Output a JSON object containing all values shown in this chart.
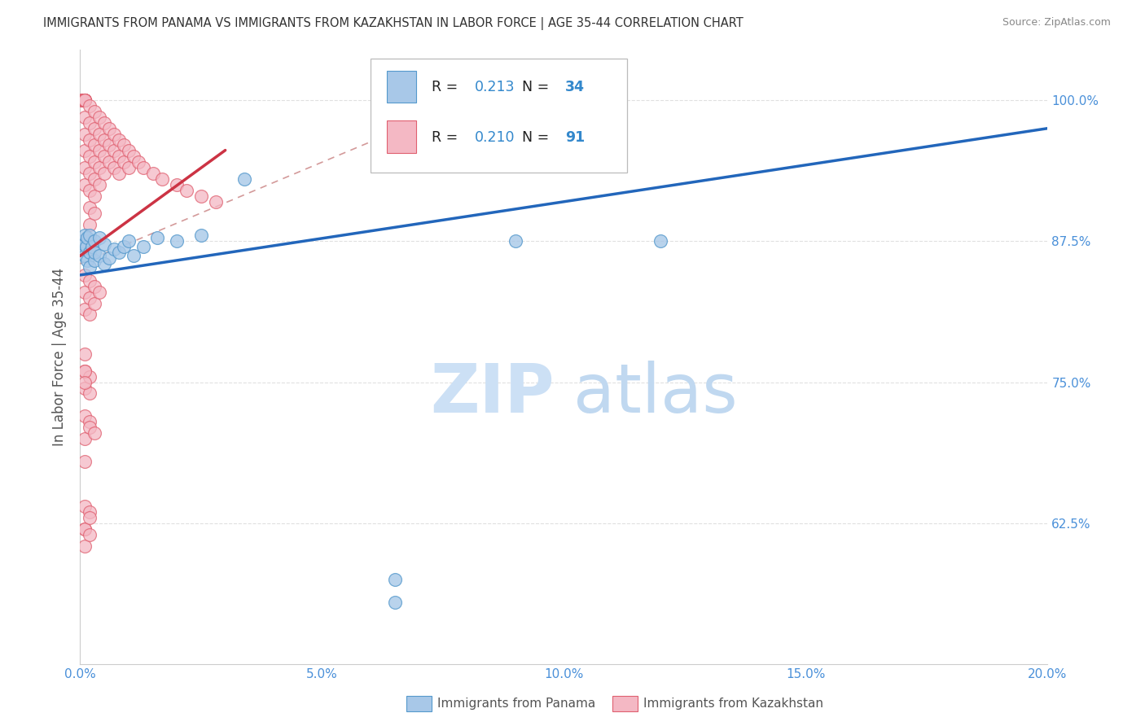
{
  "title": "IMMIGRANTS FROM PANAMA VS IMMIGRANTS FROM KAZAKHSTAN IN LABOR FORCE | AGE 35-44 CORRELATION CHART",
  "source": "Source: ZipAtlas.com",
  "ylabel": "In Labor Force | Age 35-44",
  "xlim": [
    0.0,
    0.2
  ],
  "ylim": [
    0.5,
    1.045
  ],
  "yticks": [
    0.625,
    0.75,
    0.875,
    1.0
  ],
  "ytick_labels": [
    "62.5%",
    "75.0%",
    "87.5%",
    "100.0%"
  ],
  "xticks": [
    0.0,
    0.05,
    0.1,
    0.15,
    0.2
  ],
  "xtick_labels": [
    "0.0%",
    "5.0%",
    "10.0%",
    "15.0%",
    "20.0%"
  ],
  "panama_fill": "#a8c8e8",
  "panama_edge": "#5599cc",
  "kaz_fill": "#f4b8c4",
  "kaz_edge": "#e06070",
  "panama_line": "#2266bb",
  "kaz_line": "#cc3344",
  "grid_color": "#cccccc",
  "tick_color": "#4a90d9",
  "watermark_zip_color": "#cce0f5",
  "watermark_atlas_color": "#c0d8f0",
  "legend_text_color": "#222222",
  "legend_val_color": "#3388cc",
  "R_panama": "0.213",
  "N_panama": "34",
  "R_kaz": "0.210",
  "N_kaz": "91",
  "panama_x": [
    0.0003,
    0.0005,
    0.0008,
    0.001,
    0.001,
    0.0012,
    0.0015,
    0.0015,
    0.002,
    0.002,
    0.002,
    0.0025,
    0.003,
    0.003,
    0.003,
    0.004,
    0.004,
    0.005,
    0.005,
    0.006,
    0.007,
    0.008,
    0.009,
    0.01,
    0.011,
    0.013,
    0.016,
    0.02,
    0.025,
    0.034,
    0.09,
    0.12,
    0.065,
    0.065
  ],
  "panama_y": [
    0.868,
    0.875,
    0.872,
    0.88,
    0.862,
    0.87,
    0.858,
    0.878,
    0.865,
    0.852,
    0.88,
    0.87,
    0.858,
    0.875,
    0.865,
    0.862,
    0.878,
    0.855,
    0.872,
    0.86,
    0.868,
    0.865,
    0.87,
    0.875,
    0.862,
    0.87,
    0.878,
    0.875,
    0.88,
    0.93,
    0.875,
    0.875,
    0.575,
    0.555
  ],
  "kaz_x": [
    0.0003,
    0.0005,
    0.0005,
    0.0008,
    0.001,
    0.001,
    0.001,
    0.001,
    0.001,
    0.001,
    0.001,
    0.001,
    0.001,
    0.001,
    0.001,
    0.002,
    0.002,
    0.002,
    0.002,
    0.002,
    0.002,
    0.002,
    0.002,
    0.002,
    0.003,
    0.003,
    0.003,
    0.003,
    0.003,
    0.003,
    0.003,
    0.004,
    0.004,
    0.004,
    0.004,
    0.004,
    0.005,
    0.005,
    0.005,
    0.005,
    0.006,
    0.006,
    0.006,
    0.007,
    0.007,
    0.007,
    0.008,
    0.008,
    0.008,
    0.009,
    0.009,
    0.01,
    0.01,
    0.011,
    0.012,
    0.013,
    0.015,
    0.017,
    0.02,
    0.022,
    0.025,
    0.028,
    0.001,
    0.001,
    0.001,
    0.002,
    0.002,
    0.002,
    0.003,
    0.003,
    0.004,
    0.001,
    0.002,
    0.001,
    0.001,
    0.002,
    0.003,
    0.001,
    0.002,
    0.001,
    0.001,
    0.001,
    0.002,
    0.002,
    0.001,
    0.001,
    0.002,
    0.002,
    0.001,
    0.001,
    0.001
  ],
  "kaz_y": [
    1.0,
    1.0,
    1.0,
    1.0,
    1.0,
    1.0,
    1.0,
    1.0,
    1.0,
    1.0,
    0.985,
    0.97,
    0.955,
    0.94,
    0.925,
    0.995,
    0.98,
    0.965,
    0.95,
    0.935,
    0.92,
    0.905,
    0.89,
    0.875,
    0.99,
    0.975,
    0.96,
    0.945,
    0.93,
    0.915,
    0.9,
    0.985,
    0.97,
    0.955,
    0.94,
    0.925,
    0.98,
    0.965,
    0.95,
    0.935,
    0.975,
    0.96,
    0.945,
    0.97,
    0.955,
    0.94,
    0.965,
    0.95,
    0.935,
    0.96,
    0.945,
    0.955,
    0.94,
    0.95,
    0.945,
    0.94,
    0.935,
    0.93,
    0.925,
    0.92,
    0.915,
    0.91,
    0.845,
    0.83,
    0.815,
    0.84,
    0.825,
    0.81,
    0.835,
    0.82,
    0.83,
    0.72,
    0.715,
    0.7,
    0.68,
    0.71,
    0.705,
    0.64,
    0.635,
    0.62,
    0.62,
    0.605,
    0.63,
    0.615,
    0.76,
    0.745,
    0.755,
    0.74,
    0.775,
    0.76,
    0.75
  ]
}
